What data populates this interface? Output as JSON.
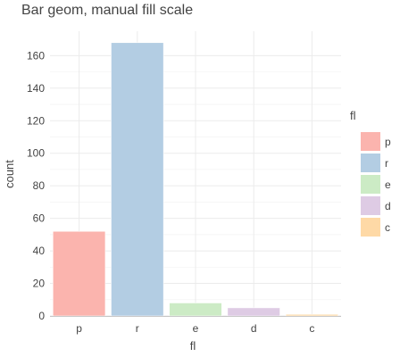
{
  "chart_data": {
    "type": "bar",
    "title": "Bar geom, manual fill scale",
    "xlabel": "fl",
    "ylabel": "count",
    "categories": [
      "p",
      "r",
      "e",
      "d",
      "c"
    ],
    "values": [
      52,
      168,
      8,
      5,
      1
    ],
    "ylim": [
      0,
      175
    ],
    "yticks": [
      0,
      20,
      40,
      60,
      80,
      100,
      120,
      140,
      160
    ],
    "colors": [
      "#fbb4ae",
      "#b3cde3",
      "#ccebc5",
      "#decbe4",
      "#fed9a6"
    ],
    "grid": true,
    "legend": {
      "title": "fl",
      "position": "right",
      "entries": [
        "p",
        "r",
        "e",
        "d",
        "c"
      ]
    }
  }
}
